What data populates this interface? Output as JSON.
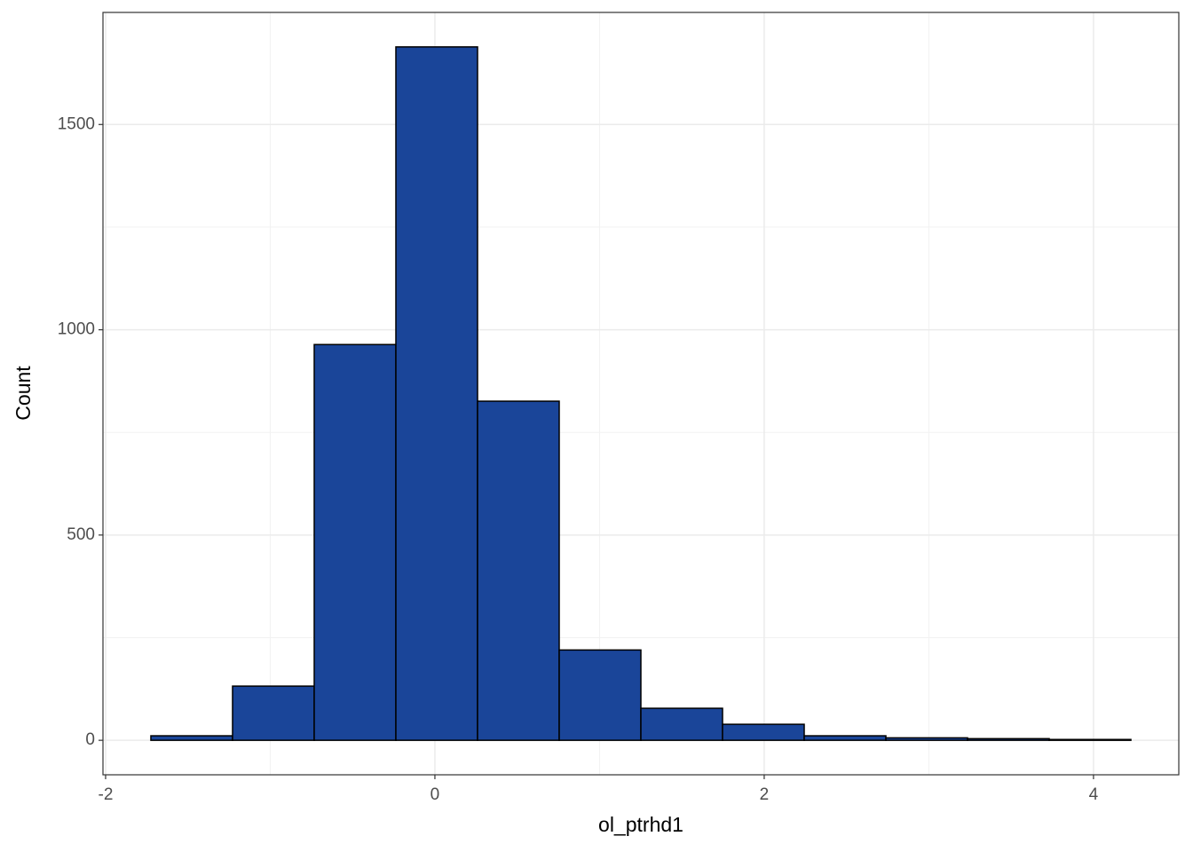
{
  "chart_data": {
    "type": "histogram",
    "x_label": "ol_ptrhd1",
    "y_label": "Count",
    "bins": [
      -1.725,
      -1.229,
      -0.733,
      -0.237,
      0.259,
      0.755,
      1.251,
      1.747,
      2.243,
      2.739,
      3.235,
      3.731,
      4.227
    ],
    "values": [
      11,
      132,
      964,
      1689,
      826,
      220,
      78,
      39,
      11,
      6,
      4,
      2
    ],
    "color": "#1a4599",
    "edge_color": "#000000",
    "xlim": [
      -2.016,
      4.518
    ],
    "ylim": [
      -84,
      1773
    ],
    "xticks": [
      -2,
      0,
      2,
      4
    ],
    "yticks": [
      0,
      500,
      1000,
      1500
    ],
    "x_minor_ticks": [
      -1,
      1,
      3
    ],
    "y_minor_ticks": [
      250,
      750,
      1250
    ],
    "grid": true
  }
}
